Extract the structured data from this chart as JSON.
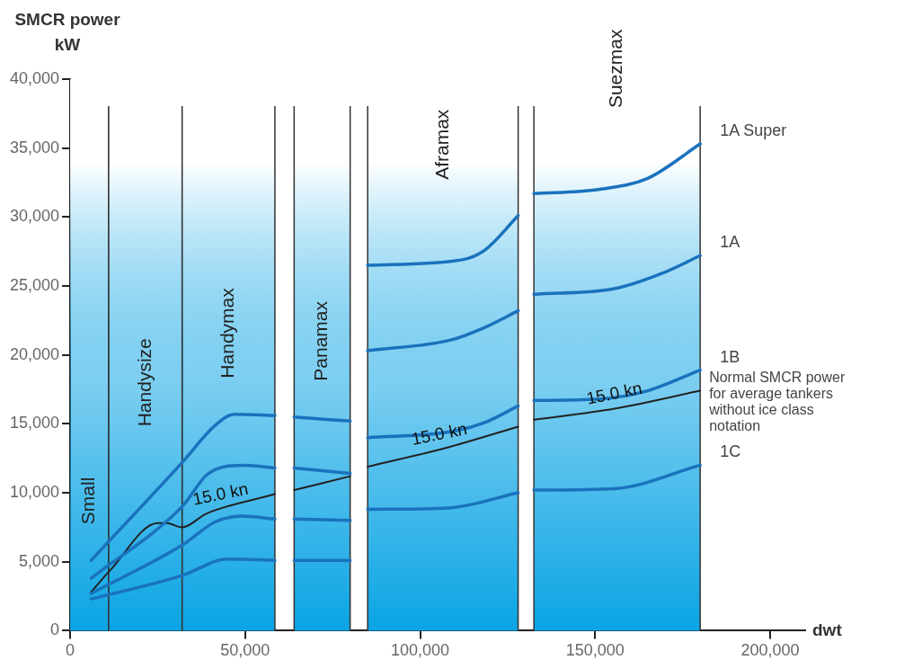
{
  "chart_data": {
    "type": "line",
    "ylabel": "SMCR power kW",
    "xlabel": "dwt",
    "xlim": [
      0,
      210000
    ],
    "xticks": [
      0,
      {
        "value": 50000,
        "label": "50,000"
      },
      {
        "value": 100000,
        "label": "100,000"
      },
      {
        "value": 150000,
        "label": "150,000"
      },
      {
        "value": 200000,
        "label": "200,000"
      }
    ],
    "ylim": [
      0,
      40000
    ],
    "yticks": [
      0,
      {
        "value": 5000,
        "label": "5,000"
      },
      {
        "value": 10000,
        "label": "10,000"
      },
      {
        "value": 15000,
        "label": "15,000"
      },
      {
        "value": 20000,
        "label": "20,000"
      },
      {
        "value": 25000,
        "label": "25,000"
      },
      {
        "value": 30000,
        "label": "30,000"
      },
      {
        "value": 35000,
        "label": "35,000"
      },
      {
        "value": 40000,
        "label": "40,000"
      }
    ],
    "legend": false,
    "marker": "none",
    "line_style": "solid",
    "bands": [
      {
        "axis": "x",
        "from": 0,
        "to": 11000,
        "label": "Small",
        "color": "#0aa4e4"
      },
      {
        "axis": "x",
        "from": 11000,
        "to": 32000,
        "label": "Handysize",
        "color": "#0aa4e4"
      },
      {
        "axis": "x",
        "from": 32000,
        "to": 58500,
        "label": "Handymax",
        "color": "#0aa4e4"
      },
      {
        "axis": "x",
        "from": 64000,
        "to": 80000,
        "label": "Panamax",
        "color": "#0aa4e4"
      },
      {
        "axis": "x",
        "from": 85000,
        "to": 128000,
        "label": "Aframax",
        "color": "#0aa4e4"
      },
      {
        "axis": "x",
        "from": 132500,
        "to": 180000,
        "label": "Suezmax",
        "color": "#0aa4e4"
      }
    ],
    "annotations": [
      {
        "text": "15.0 kn",
        "x": 43000,
        "y": 8800
      },
      {
        "text": "15.0 kn",
        "x": 105500,
        "y": 13150
      },
      {
        "text": "15.0 kn",
        "x": 155500,
        "y": 16100
      }
    ],
    "series": [
      {
        "name": "1A Super",
        "color": "#1a72bd",
        "x": [
          6000,
          32000,
          41500,
          47000,
          58500,
          61000,
          64000,
          80000,
          82500,
          85000,
          112000,
          118500,
          128000,
          130000,
          132500,
          151000,
          165000,
          180000
        ],
        "values": [
          5100,
          12200,
          14900,
          15700,
          15600,
          null,
          15500,
          15200,
          null,
          26500,
          26900,
          27600,
          30100,
          null,
          31700,
          32000,
          32800,
          35300
        ]
      },
      {
        "name": "1A",
        "color": "#1a72bd",
        "x": [
          6000,
          32000,
          39500,
          50000,
          58500,
          61000,
          64000,
          80000,
          82500,
          85000,
          109000,
          118500,
          128000,
          130000,
          132500,
          155500,
          169000,
          180000
        ],
        "values": [
          3800,
          9000,
          11400,
          12000,
          11800,
          null,
          11800,
          11400,
          null,
          20300,
          21100,
          22000,
          23200,
          null,
          24400,
          24800,
          25900,
          27200
        ]
      },
      {
        "name": "1B",
        "color": "#1a72bd",
        "x": [
          6000,
          32000,
          41500,
          49000,
          58500,
          61000,
          64000,
          80000,
          82500,
          85000,
          108000,
          118500,
          128000,
          130000,
          132500,
          151000,
          165000,
          180000
        ],
        "values": [
          2700,
          6200,
          7900,
          8300,
          8100,
          null,
          8100,
          8000,
          null,
          14000,
          14400,
          15100,
          16300,
          null,
          16700,
          16800,
          17400,
          18900
        ]
      },
      {
        "name": "1C",
        "color": "#1a72bd",
        "x": [
          6000,
          32000,
          45000,
          58500,
          61000,
          64000,
          80000,
          82500,
          85000,
          108000,
          128000,
          130000,
          132500,
          155500,
          180000
        ],
        "values": [
          2300,
          4000,
          5200,
          5100,
          null,
          5100,
          5100,
          null,
          8800,
          8900,
          10000,
          null,
          10200,
          10300,
          12000
        ]
      },
      {
        "name": "Normal SMCR power for average tankers without ice class notation",
        "color": "#222222",
        "x": [
          6000,
          11500,
          25000,
          27500,
          32000,
          39000,
          58500,
          61000,
          64000,
          80000,
          82500,
          85000,
          108000,
          128000,
          130000,
          132500,
          155500,
          180000
        ],
        "values": [
          2800,
          4400,
          7800,
          7800,
          7500,
          8500,
          9900,
          null,
          10200,
          11200,
          null,
          11900,
          13300,
          14800,
          null,
          15300,
          16100,
          17400
        ]
      }
    ]
  }
}
